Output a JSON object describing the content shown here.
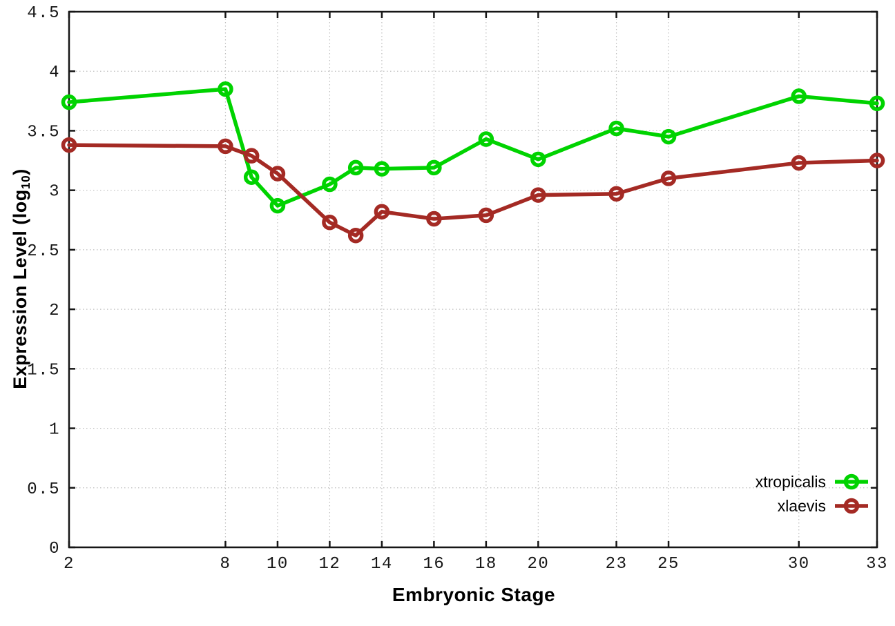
{
  "chart_data": {
    "type": "line",
    "title": "",
    "xlabel": "Embryonic Stage",
    "ylabel": "Expression Level (log10)",
    "ylabel_parts": {
      "prefix": "Expression Level (log",
      "sub": "10",
      "suffix": ")"
    },
    "x": [
      2,
      8,
      9,
      10,
      12,
      13,
      14,
      16,
      18,
      20,
      23,
      25,
      30,
      33
    ],
    "series": [
      {
        "name": "xtropicalis",
        "color": "#00d300",
        "values": [
          3.74,
          3.85,
          3.11,
          2.87,
          3.05,
          3.19,
          3.18,
          3.19,
          3.43,
          3.26,
          3.52,
          3.45,
          3.79,
          3.73
        ]
      },
      {
        "name": "xlaevis",
        "color": "#a42a24",
        "values": [
          3.38,
          3.37,
          3.29,
          3.14,
          2.73,
          2.62,
          2.82,
          2.76,
          2.79,
          2.96,
          2.97,
          3.1,
          3.23,
          3.25
        ]
      }
    ],
    "xlim": [
      2,
      33
    ],
    "ylim": [
      0,
      4.5
    ],
    "xticks": [
      2,
      8,
      10,
      12,
      14,
      16,
      18,
      20,
      23,
      25,
      30,
      33
    ],
    "yticks": [
      0,
      0.5,
      1,
      1.5,
      2,
      2.5,
      3,
      3.5,
      4,
      4.5
    ],
    "ytick_labels": [
      "0",
      "0.5",
      "1",
      "1.5",
      "2",
      "2.5",
      "3",
      "3.5",
      "4",
      "4.5"
    ],
    "grid": true,
    "grid_style": "dotted",
    "grid_color": "#bdbdbd",
    "border_color": "#161616",
    "marker": "open-circle",
    "legend_position": "bottom-right"
  }
}
